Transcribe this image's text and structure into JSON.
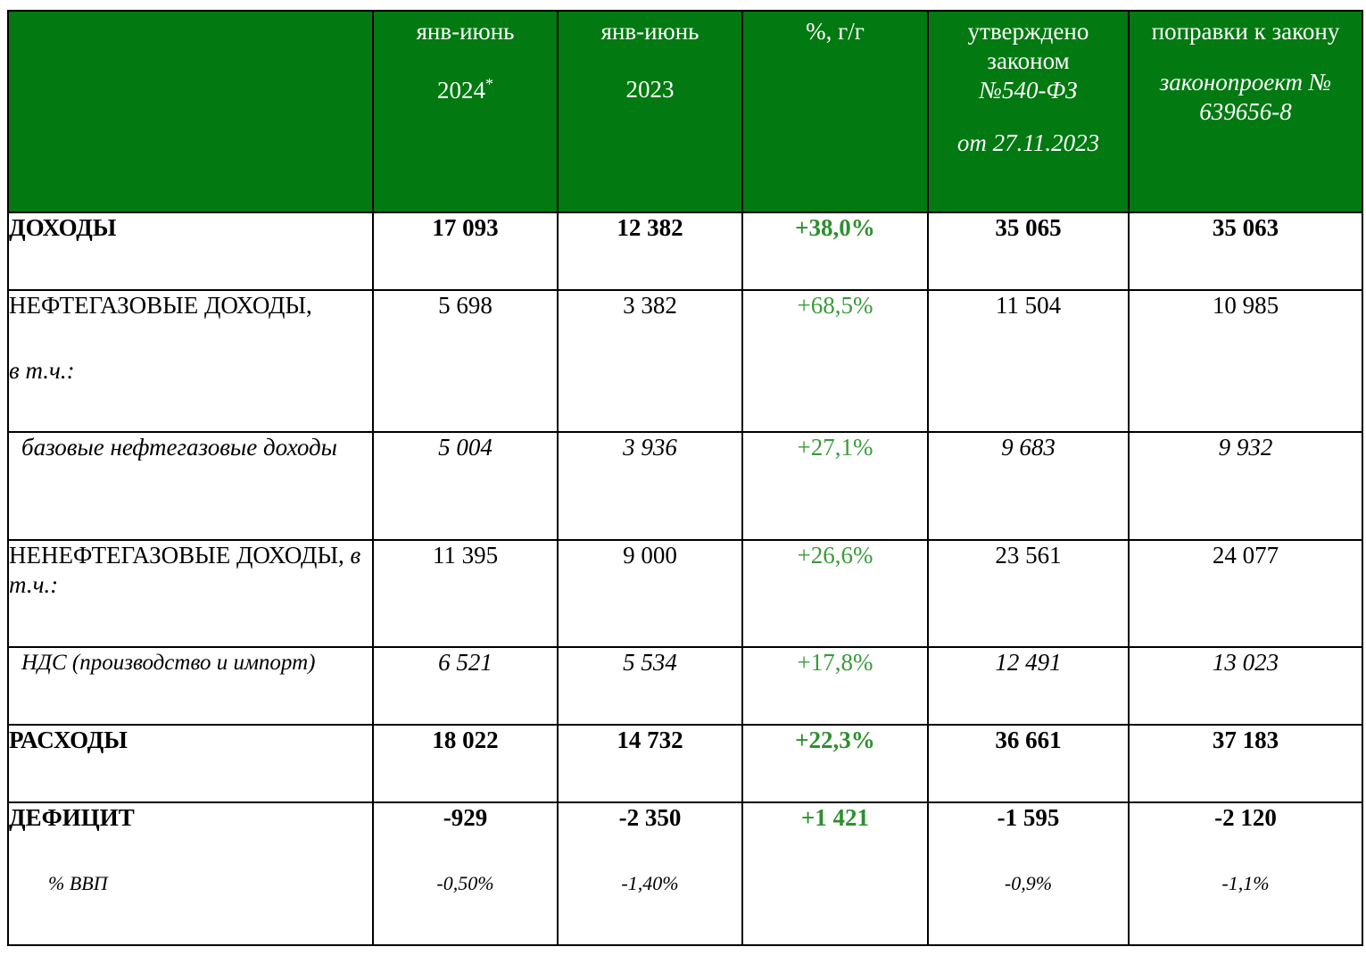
{
  "header": {
    "col1": {
      "line1": "янв-июнь",
      "line2": "2024",
      "mark": "*"
    },
    "col2": {
      "line1": "янв-июнь",
      "line2": "2023"
    },
    "col3": {
      "line1": "%, г/г"
    },
    "col4": {
      "line1": "утверждено",
      "line2": "законом",
      "line3": "№540-ФЗ",
      "line4": "от 27.11.2023"
    },
    "col5": {
      "line1": "поправки к закону",
      "line2": "законопроект №",
      "line3": "639656-8"
    }
  },
  "rows": {
    "income": {
      "label": "ДОХОДЫ",
      "v2024": "17 093",
      "v2023": "12 382",
      "pct": "+38,0%",
      "law": "35 065",
      "amend": "35 063"
    },
    "oilgas": {
      "label": "НЕФТЕГАЗОВЫЕ ДОХОДЫ,",
      "sublabel": "в т.ч.:",
      "v2024": "5 698",
      "v2023": "3 382",
      "pct": "+68,5%",
      "law": "11 504",
      "amend": "10 985"
    },
    "base_oilgas": {
      "label": "базовые нефтегазовые доходы",
      "v2024": "5 004",
      "v2023": "3 936",
      "pct": "+27,1%",
      "law": "9 683",
      "amend": "9 932"
    },
    "nonoil": {
      "label": "НЕНЕФТЕГАЗОВЫЕ ДОХОДЫ,",
      "sublabel": "в т.ч.:",
      "v2024": "11 395",
      "v2023": "9 000",
      "pct": "+26,6%",
      "law": "23 561",
      "amend": "24 077"
    },
    "vat": {
      "label": "НДС (производство и импорт)",
      "v2024": "6 521",
      "v2023": "5 534",
      "pct": "+17,8%",
      "law": "12 491",
      "amend": "13 023"
    },
    "expenses": {
      "label": "РАСХОДЫ",
      "v2024": "18 022",
      "v2023": "14 732",
      "pct": "+22,3%",
      "law": "36 661",
      "amend": "37 183"
    },
    "deficit": {
      "label": "ДЕФИЦИТ",
      "sublabel": "% ВВП",
      "v2024": "-929",
      "v2023": "-2 350",
      "pct": "+1 421",
      "law": "-1 595",
      "amend": "-2 120",
      "gdp2024": "-0,50%",
      "gdp2023": "-1,40%",
      "gdplaw": "-0,9%",
      "gdpamend": "-1,1%"
    }
  },
  "colors": {
    "header_bg": "#027911",
    "header_text": "#ffffff",
    "pct_text": "#3a9a3a"
  }
}
